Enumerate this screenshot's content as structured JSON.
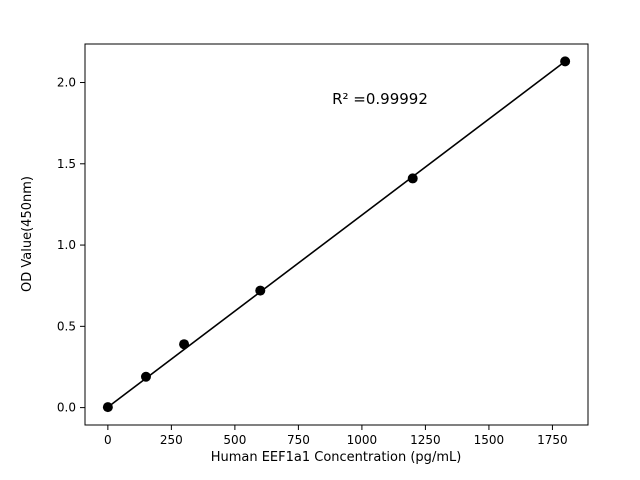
{
  "figure": {
    "background": "#ffffff"
  },
  "chart_data": {
    "type": "scatter",
    "title": "",
    "xlabel": "Human EEF1a1 Concentration (pg/mL)",
    "ylabel": "OD Value(450nm)",
    "annotation": "R² =0.99992",
    "x": [
      0,
      150,
      300,
      600,
      1200,
      1800
    ],
    "y": [
      0.003,
      0.19,
      0.39,
      0.72,
      1.41,
      2.13
    ],
    "fit_line": {
      "x": [
        0,
        1800
      ],
      "y": [
        0.003,
        2.13
      ]
    },
    "xlim": [
      -90,
      1890
    ],
    "ylim": [
      -0.107,
      2.237
    ],
    "xticks": [
      0,
      250,
      500,
      750,
      1000,
      1250,
      1500,
      1750
    ],
    "xtick_labels": [
      "0",
      "250",
      "500",
      "750",
      "1000",
      "1250",
      "1500",
      "1750"
    ],
    "yticks": [
      0.0,
      0.5,
      1.0,
      1.5,
      2.0
    ],
    "ytick_labels": [
      "0.0",
      "0.5",
      "1.0",
      "1.5",
      "2.0"
    ],
    "grid": false,
    "legend": null,
    "marker_color": "#000000",
    "line_color": "#000000"
  }
}
